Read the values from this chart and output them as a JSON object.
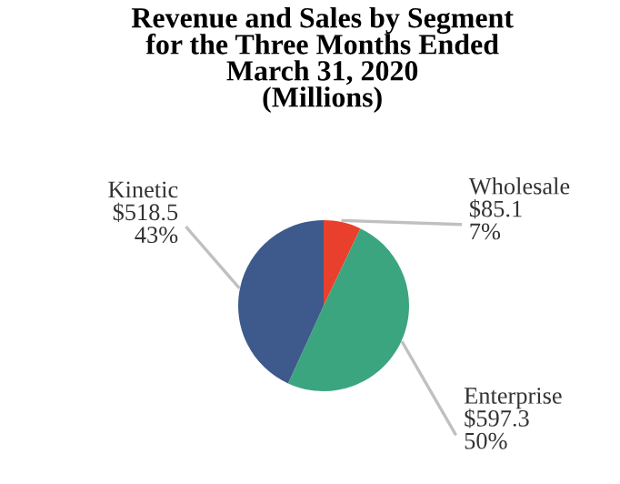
{
  "chart_data": {
    "type": "pie",
    "title": "Revenue and Sales by Segment\nfor the Three Months Ended\nMarch 31, 2020\n(Millions)",
    "categories": [
      "Wholesale",
      "Enterprise",
      "Kinetic"
    ],
    "values": [
      85.1,
      597.3,
      518.5
    ],
    "value_labels": [
      "$85.1\n7%",
      "$597.3\n50%",
      "$518.5\n43%"
    ],
    "colors": [
      "#e8402c",
      "#3ba57f",
      "#3e5a8c"
    ],
    "legend": false
  }
}
